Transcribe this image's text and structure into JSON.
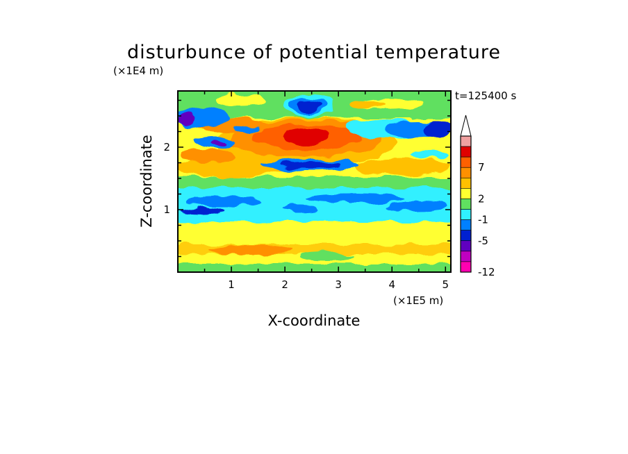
{
  "chart_data": {
    "type": "heatmap",
    "title": "disturbunce of potential temperature",
    "xlabel": "X-coordinate",
    "ylabel": "Z-coordinate",
    "x_units": "(×1E5 m)",
    "y_units": "(×1E4 m)",
    "time_label": "t=125400 s",
    "xlim": [
      0,
      5.1
    ],
    "ylim": [
      0,
      2.9
    ],
    "x_ticks": [
      "1",
      "2",
      "3",
      "4",
      "5"
    ],
    "y_ticks": [
      "1",
      "2"
    ],
    "colorbar": {
      "tick_labels": [
        "7",
        "2",
        "-1",
        "-5",
        "-12"
      ],
      "colors": [
        "#f0a0a0",
        "#e00000",
        "#ff6000",
        "#ff9000",
        "#ffc000",
        "#ffff30",
        "#60e060",
        "#30f0ff",
        "#0080ff",
        "#0020d0",
        "#6000c0",
        "#c000c0",
        "#ff00b0"
      ],
      "extend": "max"
    }
  }
}
